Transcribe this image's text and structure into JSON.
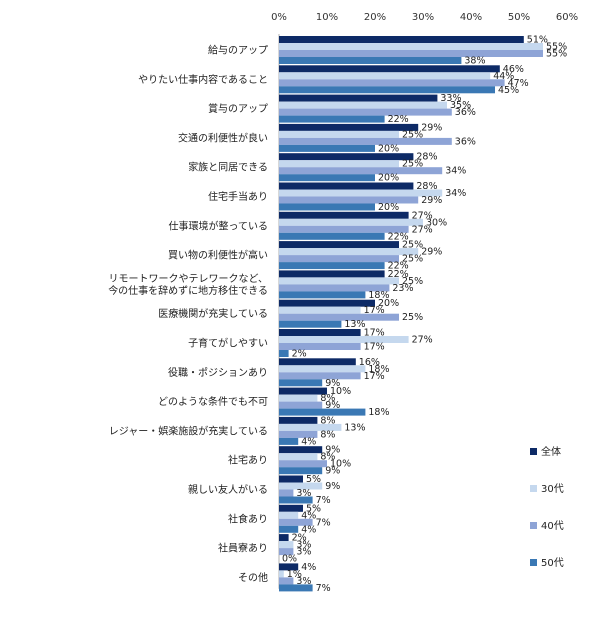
{
  "chart_data": {
    "type": "bar",
    "orientation": "horizontal",
    "unit": "%",
    "xlim": [
      0,
      60
    ],
    "x_ticks": [
      "0%",
      "10%",
      "20%",
      "30%",
      "40%",
      "50%",
      "60%"
    ],
    "grid": false,
    "legend_position": "right",
    "categories": [
      "給与のアップ",
      "やりたい仕事内容であること",
      "賞与のアップ",
      "交通の利便性が良い",
      "家族と同居できる",
      "住宅手当あり",
      "仕事環境が整っている",
      "買い物の利便性が高い",
      "リモートワークやテレワークなど、今の仕事を辞めずに地方移住できる",
      "医療機関が充実している",
      "子育てがしやすい",
      "役職・ポジションあり",
      "どのような条件でも不可",
      "レジャー・娯楽施設が充実している",
      "社宅あり",
      "親しい友人がいる",
      "社食あり",
      "社員寮あり",
      "その他"
    ],
    "category_lines": [
      [
        "給与のアップ"
      ],
      [
        "やりたい仕事内容であること"
      ],
      [
        "賞与のアップ"
      ],
      [
        "交通の利便性が良い"
      ],
      [
        "家族と同居できる"
      ],
      [
        "住宅手当あり"
      ],
      [
        "仕事環境が整っている"
      ],
      [
        "買い物の利便性が高い"
      ],
      [
        "リモートワークやテレワークなど、",
        "今の仕事を辞めずに地方移住できる"
      ],
      [
        "医療機関が充実している"
      ],
      [
        "子育てがしやすい"
      ],
      [
        "役職・ポジションあり"
      ],
      [
        "どのような条件でも不可"
      ],
      [
        "レジャー・娯楽施設が充実している"
      ],
      [
        "社宅あり"
      ],
      [
        "親しい友人がいる"
      ],
      [
        "社食あり"
      ],
      [
        "社員寮あり"
      ],
      [
        "その他"
      ]
    ],
    "series": [
      {
        "name": "全体",
        "color": "#0d2a66",
        "values": [
          51,
          46,
          33,
          29,
          28,
          28,
          27,
          25,
          22,
          20,
          17,
          16,
          10,
          8,
          9,
          5,
          5,
          2,
          4
        ]
      },
      {
        "name": "30代",
        "color": "#c5d8ee",
        "values": [
          55,
          44,
          35,
          25,
          25,
          34,
          30,
          29,
          25,
          17,
          27,
          18,
          8,
          13,
          8,
          9,
          4,
          3,
          1
        ]
      },
      {
        "name": "40代",
        "color": "#8ea4d6",
        "values": [
          55,
          47,
          36,
          36,
          34,
          29,
          27,
          25,
          23,
          25,
          17,
          17,
          9,
          8,
          10,
          3,
          7,
          3,
          3
        ]
      },
      {
        "name": "50代",
        "color": "#3a78b4",
        "values": [
          38,
          45,
          22,
          20,
          20,
          20,
          22,
          22,
          18,
          13,
          2,
          9,
          18,
          4,
          9,
          7,
          4,
          0,
          7
        ]
      }
    ]
  }
}
